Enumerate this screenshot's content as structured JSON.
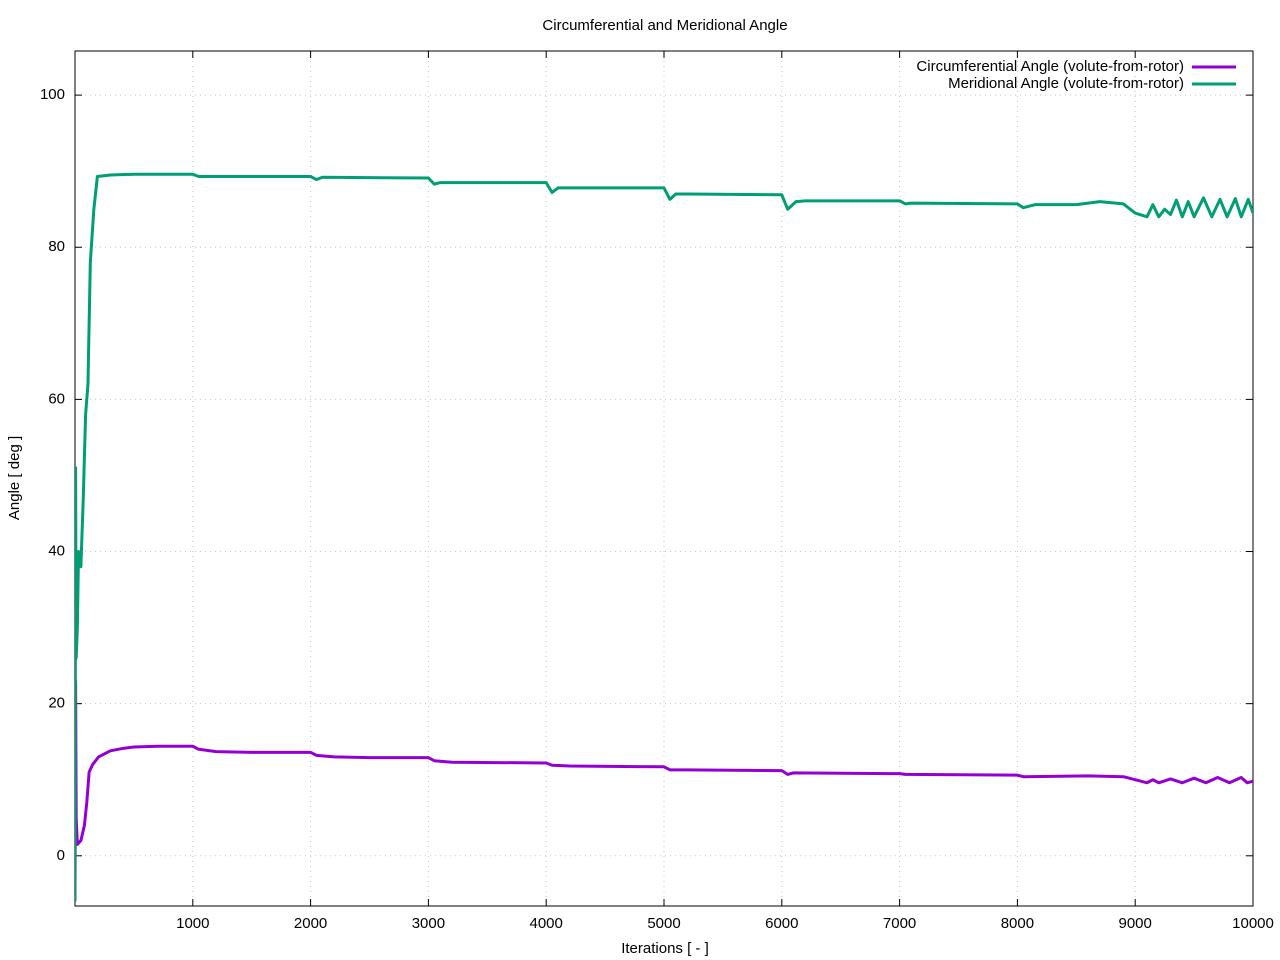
{
  "chart_data": {
    "type": "line",
    "title": "Circumferential and Meridional Angle",
    "x_label": "Iterations [ - ]",
    "y_label": "Angle [ deg ]",
    "xlim": [
      0,
      10000
    ],
    "ylim": [
      -6.6,
      105.8
    ],
    "xticks": [
      1000,
      2000,
      3000,
      4000,
      5000,
      6000,
      7000,
      8000,
      9000,
      10000
    ],
    "yticks": [
      0,
      20,
      40,
      60,
      80,
      100
    ],
    "grid": true,
    "legend": "top-right",
    "series": [
      {
        "name": "Circumferential Angle (volute-from-rotor)",
        "color": "#9400d3",
        "x": [
          0,
          5,
          10,
          20,
          50,
          80,
          100,
          120,
          150,
          200,
          300,
          400,
          500,
          700,
          1000,
          1050,
          1200,
          1500,
          2000,
          2050,
          2200,
          2500,
          3000,
          3050,
          3200,
          4000,
          4050,
          4200,
          5000,
          5050,
          5200,
          6000,
          6050,
          6100,
          7000,
          7050,
          8000,
          8050,
          8600,
          8900,
          9000,
          9100,
          9150,
          9200,
          9300,
          9400,
          9500,
          9600,
          9700,
          9800,
          9900,
          9950,
          10000
        ],
        "values": [
          -6,
          23,
          5,
          1.5,
          2,
          4,
          7,
          11,
          12,
          13,
          13.8,
          14.1,
          14.3,
          14.4,
          14.4,
          14,
          13.7,
          13.6,
          13.6,
          13.2,
          13,
          12.9,
          12.9,
          12.5,
          12.3,
          12.2,
          11.9,
          11.8,
          11.7,
          11.3,
          11.3,
          11.2,
          10.7,
          10.9,
          10.8,
          10.7,
          10.6,
          10.4,
          10.5,
          10.4,
          10,
          9.6,
          10,
          9.6,
          10.1,
          9.6,
          10.2,
          9.6,
          10.3,
          9.6,
          10.3,
          9.6,
          9.8
        ]
      },
      {
        "name": "Meridional Angle (volute-from-rotor)",
        "color": "#009e73",
        "x": [
          0,
          5,
          10,
          20,
          30,
          50,
          70,
          90,
          110,
          130,
          160,
          190,
          300,
          500,
          1000,
          1050,
          2000,
          2050,
          2100,
          3000,
          3050,
          3100,
          4000,
          4050,
          4100,
          5000,
          5050,
          5100,
          5200,
          6000,
          6050,
          6120,
          6200,
          7000,
          7050,
          7100,
          8000,
          8050,
          8150,
          8500,
          8700,
          8900,
          9000,
          9100,
          9150,
          9200,
          9250,
          9300,
          9350,
          9400,
          9450,
          9500,
          9580,
          9650,
          9720,
          9780,
          9850,
          9900,
          9960,
          10000
        ],
        "values": [
          -6,
          51,
          26,
          30,
          40,
          38,
          47,
          58,
          62,
          78,
          85,
          89.3,
          89.5,
          89.6,
          89.6,
          89.3,
          89.3,
          88.9,
          89.2,
          89.1,
          88.3,
          88.5,
          88.5,
          87.2,
          87.8,
          87.8,
          86.3,
          87,
          87,
          86.9,
          85,
          86,
          86.1,
          86.1,
          85.7,
          85.8,
          85.7,
          85.2,
          85.6,
          85.6,
          86,
          85.7,
          84.5,
          84,
          85.6,
          84,
          85,
          84.3,
          86.2,
          84,
          86,
          84,
          86.5,
          84,
          86.3,
          84,
          86.4,
          84,
          86.3,
          84.5
        ]
      }
    ]
  }
}
